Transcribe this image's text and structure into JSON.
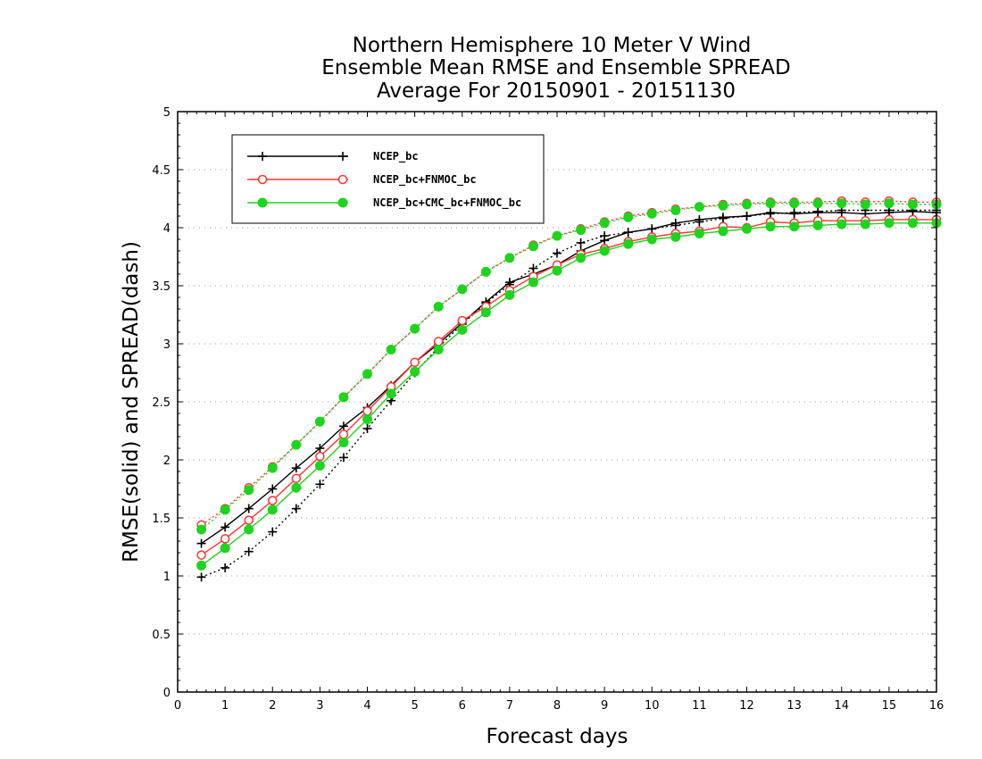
{
  "chart_data": {
    "type": "line",
    "title_lines": [
      "Northern Hemisphere 10 Meter V Wind",
      "Ensemble Mean RMSE and Ensemble SPREAD",
      "Average For 20150901 - 20151130"
    ],
    "xlabel": "Forecast days",
    "ylabel": "RMSE(solid) and SPREAD(dash)",
    "xlim": [
      0,
      16
    ],
    "ylim": [
      0,
      5
    ],
    "xticks": [
      "0",
      "1",
      "2",
      "3",
      "4",
      "5",
      "6",
      "7",
      "8",
      "9",
      "10",
      "11",
      "12",
      "13",
      "14",
      "15",
      "16"
    ],
    "yticks": [
      "0",
      "0.5",
      "1",
      "1.5",
      "2",
      "2.5",
      "3",
      "3.5",
      "4",
      "4.5",
      "5"
    ],
    "grid": "horizontal dotted",
    "legend_position": "top-left",
    "x": [
      0.5,
      1,
      1.5,
      2,
      2.5,
      3,
      3.5,
      4,
      4.5,
      5,
      5.5,
      6,
      6.5,
      7,
      7.5,
      8,
      8.5,
      9,
      9.5,
      10,
      10.5,
      11,
      11.5,
      12,
      12.5,
      13,
      13.5,
      14,
      14.5,
      15,
      15.5,
      16
    ],
    "series": [
      {
        "name": "NCEP_bc",
        "color": "#000000",
        "marker": "plus",
        "rmse": [
          1.28,
          1.42,
          1.58,
          1.75,
          1.93,
          2.1,
          2.29,
          2.45,
          2.64,
          2.84,
          3.0,
          3.18,
          3.36,
          3.53,
          3.6,
          3.68,
          3.8,
          3.89,
          3.96,
          3.99,
          4.04,
          4.07,
          4.09,
          4.1,
          4.13,
          4.12,
          4.13,
          4.13,
          4.12,
          4.13,
          4.14,
          4.13
        ],
        "spread": [
          0.99,
          1.07,
          1.21,
          1.38,
          1.58,
          1.79,
          2.02,
          2.27,
          2.51,
          2.75,
          2.97,
          3.17,
          3.35,
          3.51,
          3.65,
          3.78,
          3.87,
          3.93,
          3.96,
          3.99,
          4.02,
          4.05,
          4.08,
          4.1,
          4.12,
          4.13,
          4.14,
          4.15,
          4.15,
          4.15,
          4.15,
          4.15
        ]
      },
      {
        "name": "NCEP_bc+FNMOC_bc",
        "color": "#ff3333",
        "marker": "open-circle",
        "rmse": [
          1.18,
          1.32,
          1.48,
          1.65,
          1.84,
          2.03,
          2.22,
          2.42,
          2.63,
          2.84,
          3.02,
          3.2,
          3.32,
          3.46,
          3.58,
          3.68,
          3.77,
          3.82,
          3.88,
          3.92,
          3.95,
          3.97,
          4.01,
          4.0,
          4.05,
          4.04,
          4.06,
          4.06,
          4.06,
          4.07,
          4.07,
          4.07
        ],
        "spread": [
          1.44,
          1.58,
          1.76,
          1.94,
          2.13,
          2.33,
          2.54,
          2.74,
          2.95,
          3.13,
          3.32,
          3.47,
          3.62,
          3.74,
          3.85,
          3.93,
          3.99,
          4.05,
          4.1,
          4.13,
          4.16,
          4.18,
          4.2,
          4.21,
          4.22,
          4.22,
          4.22,
          4.23,
          4.22,
          4.23,
          4.22,
          4.22
        ]
      },
      {
        "name": "NCEP_bc+CMC_bc+FNMOC_bc",
        "color": "#1ed41e",
        "marker": "filled-circle",
        "rmse": [
          1.09,
          1.24,
          1.4,
          1.57,
          1.76,
          1.95,
          2.15,
          2.35,
          2.57,
          2.76,
          2.95,
          3.12,
          3.27,
          3.42,
          3.53,
          3.63,
          3.74,
          3.8,
          3.86,
          3.9,
          3.92,
          3.95,
          3.97,
          3.99,
          4.01,
          4.01,
          4.02,
          4.03,
          4.03,
          4.04,
          4.04,
          4.04
        ],
        "spread": [
          1.4,
          1.57,
          1.74,
          1.93,
          2.13,
          2.33,
          2.54,
          2.74,
          2.95,
          3.13,
          3.32,
          3.47,
          3.62,
          3.74,
          3.84,
          3.93,
          3.98,
          4.04,
          4.09,
          4.12,
          4.15,
          4.18,
          4.19,
          4.2,
          4.21,
          4.21,
          4.21,
          4.21,
          4.2,
          4.21,
          4.2,
          4.2
        ]
      }
    ]
  }
}
